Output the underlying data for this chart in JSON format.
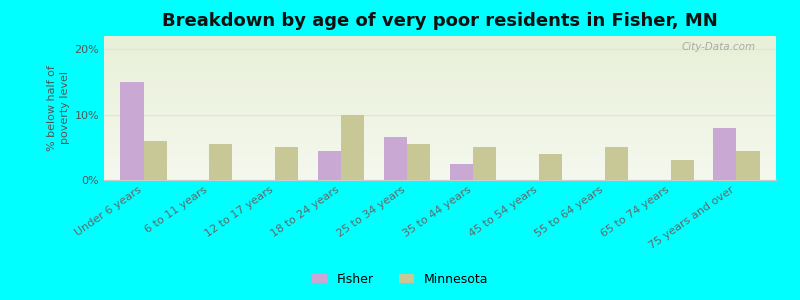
{
  "categories": [
    "Under 6 years",
    "6 to 11 years",
    "12 to 17 years",
    "18 to 24 years",
    "25 to 34 years",
    "35 to 44 years",
    "45 to 54 years",
    "55 to 64 years",
    "65 to 74 years",
    "75 years and over"
  ],
  "fisher_values": [
    15.0,
    0.0,
    0.0,
    4.5,
    6.5,
    2.5,
    0.0,
    0.0,
    0.0,
    8.0
  ],
  "minnesota_values": [
    6.0,
    5.5,
    5.0,
    10.0,
    5.5,
    5.0,
    4.0,
    5.0,
    3.0,
    4.5
  ],
  "fisher_color": "#c9a8d4",
  "minnesota_color": "#c8c896",
  "title": "Breakdown by age of very poor residents in Fisher, MN",
  "ylabel": "% below half of\npoverty level",
  "ylim": [
    0,
    22
  ],
  "yticks": [
    0,
    10,
    20
  ],
  "ytick_labels": [
    "0%",
    "10%",
    "20%"
  ],
  "background_color": "#00ffff",
  "bar_width": 0.35,
  "title_fontsize": 13,
  "axis_fontsize": 8,
  "tick_fontsize": 8,
  "legend_labels": [
    "Fisher",
    "Minnesota"
  ],
  "grid_color": "#e0e8cc",
  "plot_bg_color": "#edf3e0"
}
